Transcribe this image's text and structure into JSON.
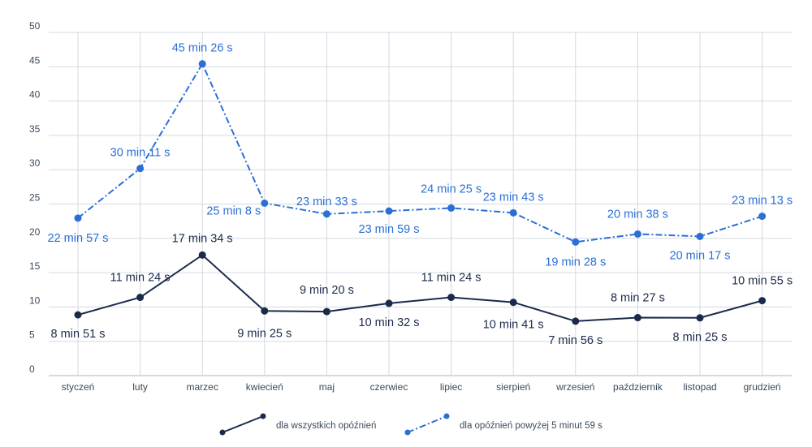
{
  "chart_data": {
    "type": "line",
    "title": "",
    "xlabel": "",
    "ylabel": "",
    "ylim": [
      0,
      50
    ],
    "yticks": [
      0,
      5,
      10,
      15,
      20,
      25,
      30,
      35,
      40,
      45,
      50
    ],
    "grid": true,
    "legend_position": "bottom",
    "categories": [
      "styczeń",
      "luty",
      "marzec",
      "kwiecień",
      "maj",
      "czerwiec",
      "lipiec",
      "sierpień",
      "wrzesień",
      "październik",
      "listopad",
      "grudzień"
    ],
    "series": [
      {
        "name": "dla wszystkich opóźnień",
        "color": "#1b2a4a",
        "line_style": "solid",
        "values": [
          8.85,
          11.4,
          17.57,
          9.42,
          9.33,
          10.53,
          11.4,
          10.68,
          7.93,
          8.45,
          8.42,
          10.92
        ],
        "labels": [
          "8 min 51 s",
          "11 min 24 s",
          "17 min 34 s",
          "9 min 25 s",
          "9 min 20 s",
          "10 min 32 s",
          "11 min 24 s",
          "10 min 41 s",
          "7 min 56 s",
          "8 min 27 s",
          "8 min 25 s",
          "10 min 55 s"
        ]
      },
      {
        "name": "dla opóźnień powyżej 5 minut 59 s",
        "color": "#2a6fd6",
        "line_style": "dashdot",
        "values": [
          22.95,
          30.18,
          45.43,
          25.13,
          23.55,
          23.98,
          24.42,
          23.72,
          19.47,
          20.63,
          20.28,
          23.22
        ],
        "labels": [
          "22 min 57 s",
          "30 min 11 s",
          "45 min 26 s",
          "25 min 8 s",
          "23 min 33 s",
          "23 min 59 s",
          "24 min 25 s",
          "23 min 43 s",
          "19 min 28 s",
          "20 min 38 s",
          "20 min 17 s",
          "23 min 13 s"
        ]
      }
    ]
  }
}
